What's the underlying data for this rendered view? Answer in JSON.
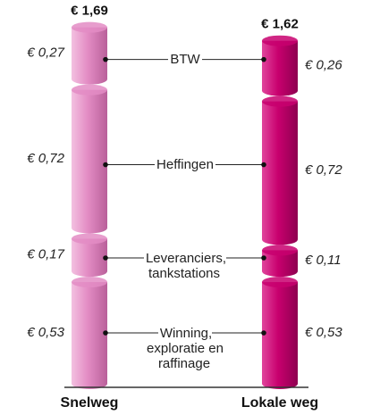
{
  "chart_data": {
    "type": "stacked-cylinder",
    "categories": [
      "Snelweg",
      "Lokale weg"
    ],
    "colors": [
      "#e38cc4",
      "#c8006e"
    ],
    "totals": [
      1.69,
      1.62
    ],
    "total_labels": [
      "€ 1,69",
      "€ 1,62"
    ],
    "series": [
      {
        "name": "Winning, exploratie en raffinage",
        "values": [
          0.53,
          0.53
        ],
        "value_labels": [
          "€ 0,53",
          "€ 0,53"
        ]
      },
      {
        "name": "Leveranciers, tankstations",
        "values": [
          0.17,
          0.11
        ],
        "value_labels": [
          "€ 0,17",
          "€ 0,11"
        ]
      },
      {
        "name": "Heffingen",
        "values": [
          0.72,
          0.72
        ],
        "value_labels": [
          "€ 0,72",
          "€ 0,72"
        ]
      },
      {
        "name": "BTW",
        "values": [
          0.27,
          0.26
        ],
        "value_labels": [
          "€ 0,27",
          "€ 0,26"
        ]
      }
    ]
  }
}
